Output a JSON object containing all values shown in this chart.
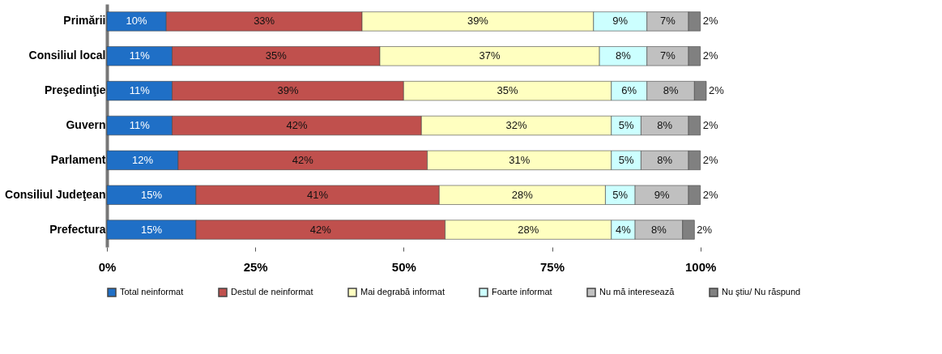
{
  "chart_data": {
    "type": "bar",
    "orientation": "horizontal",
    "stacked": true,
    "categories": [
      "Primării",
      "Consiliul local",
      "Preşedinţie",
      "Guvern",
      "Parlament",
      "Consiliul Judeţean",
      "Prefectura"
    ],
    "series": [
      {
        "name": "Total neinformat",
        "color": "#1f6fc6",
        "values": [
          10,
          11,
          11,
          11,
          12,
          15,
          15
        ],
        "value_labels": [
          "10%",
          "11%",
          "11%",
          "11%",
          "12%",
          "15%",
          "15%"
        ]
      },
      {
        "name": "Destul de neinformat",
        "color": "#c0504d",
        "values": [
          33,
          35,
          39,
          42,
          42,
          41,
          42
        ],
        "value_labels": [
          "33%",
          "35%",
          "39%",
          "42%",
          "42%",
          "41%",
          "42%"
        ]
      },
      {
        "name": "Mai degrabă informat",
        "color": "#ffffc0",
        "values": [
          39,
          37,
          35,
          32,
          31,
          28,
          28
        ],
        "value_labels": [
          "39%",
          "37%",
          "35%",
          "32%",
          "31%",
          "28%",
          "28%"
        ]
      },
      {
        "name": "Foarte informat",
        "color": "#ccffff",
        "values": [
          9,
          8,
          6,
          5,
          5,
          5,
          4
        ],
        "value_labels": [
          "9%",
          "8%",
          "6%",
          "5%",
          "5%",
          "5%",
          "4%"
        ]
      },
      {
        "name": "Nu mă interesează",
        "color": "#c0c0c0",
        "values": [
          7,
          7,
          8,
          8,
          8,
          9,
          8
        ],
        "value_labels": [
          "7%",
          "7%",
          "8%",
          "8%",
          "8%",
          "9%",
          "8%"
        ]
      },
      {
        "name": "Nu ştiu/ Nu răspund",
        "color": "#808080",
        "values": [
          2,
          2,
          2,
          2,
          2,
          2,
          2
        ],
        "value_labels": [
          "2%",
          "2%",
          "2%",
          "2%",
          "2%",
          "2%",
          "2%"
        ]
      }
    ],
    "xlim": [
      0,
      101
    ],
    "xticks": [
      {
        "value": 0,
        "label": "0%"
      },
      {
        "value": 25,
        "label": "25%"
      },
      {
        "value": 50,
        "label": "50%"
      },
      {
        "value": 75,
        "label": "75%"
      },
      {
        "value": 100,
        "label": "100%"
      }
    ],
    "legend": "bottom",
    "grid": false
  }
}
